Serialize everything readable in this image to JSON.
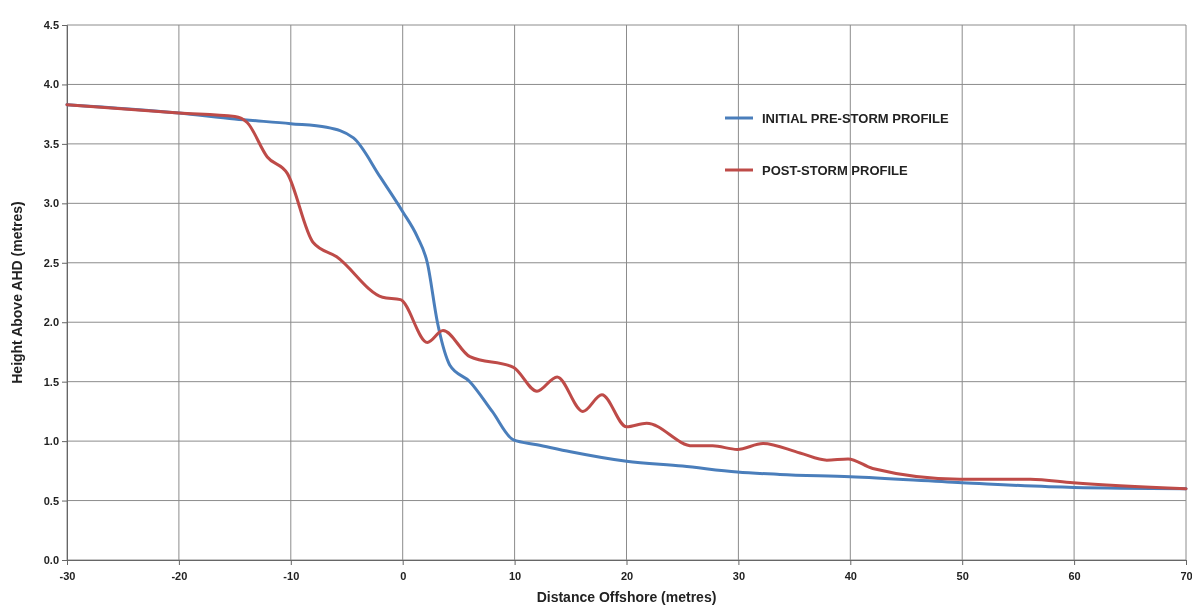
{
  "chart_data": {
    "type": "line",
    "xlabel": "Distance Offshore (metres)",
    "ylabel": "Height Above AHD (metres)",
    "xlim": [
      -30,
      70
    ],
    "xticks": [
      -30,
      -20,
      -10,
      0,
      10,
      20,
      30,
      40,
      50,
      60,
      70
    ],
    "ylim": [
      0,
      4.5
    ],
    "yticks": [
      {
        "value": 0,
        "label": "0.0"
      },
      {
        "value": 0.5,
        "label": "0.5"
      },
      {
        "value": 1,
        "label": "1.0"
      },
      {
        "value": 1.5,
        "label": "1.5"
      },
      {
        "value": 2,
        "label": "2.0"
      },
      {
        "value": 2.5,
        "label": "2.5"
      },
      {
        "value": 3,
        "label": "3.0"
      },
      {
        "value": 3.5,
        "label": "3.5"
      },
      {
        "value": 4,
        "label": "4.0"
      },
      {
        "value": 4.5,
        "label": "4.5"
      }
    ],
    "grid": true,
    "legend": "top right",
    "marker": "none",
    "line_style": "solid",
    "series": [
      {
        "name": "INITIAL PRE-STORM PROFILE",
        "color": "#4a7ebb",
        "x": [
          -30,
          -20,
          -15,
          -10,
          -6.8,
          -4.4,
          -2,
          0,
          1.3,
          2.2,
          3.1,
          4.1,
          4.2,
          6,
          8,
          9.9,
          12,
          15,
          20,
          25,
          29.9,
          33.7,
          40,
          50,
          60,
          70
        ],
        "values": [
          3.83,
          3.76,
          3.71,
          3.67,
          3.64,
          3.55,
          3.22,
          2.93,
          2.72,
          2.5,
          2.0,
          1.66,
          1.64,
          1.5,
          1.25,
          1.01,
          0.97,
          0.91,
          0.83,
          0.79,
          0.74,
          0.72,
          0.7,
          0.65,
          0.61,
          0.6
        ]
      },
      {
        "name": "POST-STORM PROFILE",
        "color": "#be4b48",
        "x": [
          -30,
          -20,
          -15,
          -13.9,
          -12.1,
          -10.3,
          -8,
          -5.9,
          -1.8,
          -0.2,
          2.2,
          3.6,
          6,
          9.9,
          12,
          13.8,
          16.1,
          17.8,
          20,
          21.8,
          25.9,
          27.7,
          29.9,
          32.2,
          35.5,
          37.9,
          39.8,
          42,
          49.8,
          56.1,
          59.9,
          70
        ],
        "values": [
          3.83,
          3.76,
          3.73,
          3.68,
          3.39,
          3.25,
          2.67,
          2.55,
          2.21,
          2.19,
          1.83,
          1.93,
          1.71,
          1.62,
          1.42,
          1.54,
          1.25,
          1.39,
          1.12,
          1.15,
          0.96,
          0.96,
          0.93,
          0.98,
          0.9,
          0.84,
          0.85,
          0.77,
          0.68,
          0.68,
          0.65,
          0.6
        ]
      }
    ]
  }
}
